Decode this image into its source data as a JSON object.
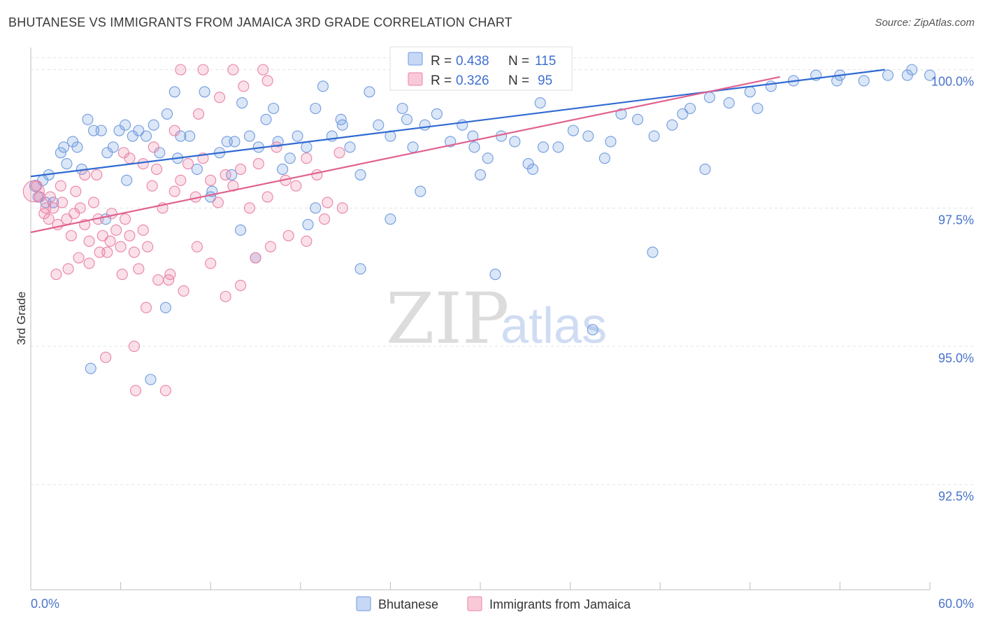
{
  "header": {
    "title": "BHUTANESE VS IMMIGRANTS FROM JAMAICA 3RD GRADE CORRELATION CHART",
    "source": "Source: ZipAtlas.com"
  },
  "watermark": {
    "zip": "ZIP",
    "atlas": "atlas"
  },
  "legend_stats": {
    "r_label": "R =",
    "n_label": "N =",
    "rows": [
      {
        "r": "0.438",
        "n": "115",
        "color": "#6f9be0"
      },
      {
        "r": "0.326",
        "n": "95",
        "color": "#ea82a6"
      }
    ]
  },
  "chart_data": {
    "type": "scatter",
    "title": "BHUTANESE VS IMMIGRANTS FROM JAMAICA 3RD GRADE CORRELATION CHART",
    "xlabel": "",
    "ylabel": "3rd Grade",
    "xlim": [
      0,
      60
    ],
    "ylim": [
      90.6,
      100.4
    ],
    "x_tick_labels": [
      "0.0%",
      "60.0%"
    ],
    "y_ticks": [
      100.0,
      97.5,
      95.0,
      92.5
    ],
    "y_tick_labels": [
      "100.0%",
      "97.5%",
      "95.0%",
      "92.5%"
    ],
    "grid": "horizontal dashed",
    "legend_position": "bottom-center",
    "series": [
      {
        "name": "Bhutanese",
        "color": "#6f9be0",
        "R": 0.438,
        "N": 115,
        "trend": {
          "x": [
            0,
            57
          ],
          "y": [
            98.07,
            100.0
          ]
        },
        "x": [
          0.3,
          0.5,
          0.8,
          1.2,
          1.5,
          2.0,
          2.4,
          2.8,
          3.1,
          3.4,
          3.8,
          4.2,
          4.7,
          5.1,
          5.5,
          5.9,
          6.3,
          6.8,
          7.2,
          7.7,
          8.2,
          8.6,
          9.1,
          9.6,
          10.0,
          10.6,
          11.1,
          11.6,
          12.1,
          12.6,
          13.1,
          13.6,
          14.1,
          14.6,
          15.2,
          15.7,
          16.2,
          16.8,
          17.3,
          17.8,
          18.4,
          19.0,
          19.5,
          20.1,
          20.7,
          21.3,
          22.0,
          22.6,
          23.2,
          24.0,
          24.8,
          25.5,
          26.3,
          27.1,
          28.0,
          28.8,
          29.6,
          30.5,
          31.4,
          32.3,
          33.2,
          34.2,
          35.2,
          36.2,
          37.2,
          38.3,
          39.4,
          40.5,
          41.6,
          42.8,
          44.0,
          45.3,
          46.6,
          48.0,
          49.4,
          50.9,
          52.4,
          54.0,
          55.6,
          57.2,
          58.8,
          60.0,
          2.2,
          6.4,
          9.8,
          13.4,
          16.5,
          20.8,
          25.1,
          29.5,
          34.0,
          38.7,
          43.5,
          48.5,
          53.8,
          58.5,
          1.0,
          5.0,
          9.0,
          12.0,
          15.0,
          18.5,
          22.0,
          26.0,
          30.0,
          33.5,
          37.5,
          41.5,
          45.0,
          4.0,
          8.0,
          14.0,
          19.0,
          24.0,
          31.0
        ],
        "y": [
          97.9,
          97.7,
          98.0,
          98.1,
          97.6,
          98.5,
          98.3,
          98.7,
          98.6,
          98.2,
          99.1,
          98.9,
          98.9,
          98.5,
          98.6,
          98.9,
          99.0,
          98.8,
          98.9,
          98.8,
          99.0,
          98.5,
          99.2,
          99.6,
          98.8,
          98.8,
          98.2,
          99.6,
          97.8,
          98.5,
          98.7,
          98.7,
          99.4,
          98.8,
          98.6,
          99.1,
          99.3,
          98.2,
          98.4,
          98.8,
          98.6,
          99.3,
          99.7,
          98.8,
          99.1,
          98.6,
          98.1,
          99.6,
          99.0,
          98.8,
          99.3,
          98.6,
          99.0,
          99.2,
          98.7,
          99.0,
          98.6,
          98.4,
          98.8,
          98.7,
          98.3,
          98.6,
          98.6,
          98.9,
          98.8,
          98.4,
          99.2,
          99.1,
          98.8,
          99.0,
          99.3,
          99.5,
          99.4,
          99.6,
          99.7,
          99.8,
          99.9,
          99.9,
          99.8,
          99.9,
          100.0,
          99.9,
          98.6,
          98.0,
          98.4,
          98.1,
          98.7,
          99.0,
          99.1,
          98.8,
          99.4,
          98.7,
          99.2,
          99.3,
          99.8,
          99.9,
          97.6,
          97.3,
          95.7,
          97.7,
          96.6,
          97.2,
          96.4,
          97.8,
          98.1,
          98.2,
          95.3,
          96.7,
          98.2,
          94.6,
          94.4,
          97.1,
          97.5,
          97.3,
          96.3
        ],
        "size": [
          16,
          15,
          15,
          15,
          15,
          15,
          15,
          15,
          15,
          15,
          15,
          15,
          15,
          15,
          15,
          15,
          15,
          15,
          15,
          15,
          15,
          15,
          15,
          15,
          15,
          15,
          15,
          15,
          15,
          15,
          15,
          15,
          15,
          15,
          15,
          15,
          15,
          15,
          15,
          15,
          15,
          15,
          15,
          15,
          15,
          15,
          15,
          15,
          15,
          15,
          15,
          15,
          15,
          15,
          15,
          15,
          15,
          15,
          15,
          15,
          15,
          15,
          15,
          15,
          15,
          15,
          15,
          15,
          15,
          15,
          15,
          15,
          15,
          15,
          15,
          15,
          15,
          15,
          15,
          15,
          15,
          15,
          15,
          15,
          15,
          15,
          15,
          15,
          15,
          15,
          15,
          15,
          15,
          15,
          15,
          15,
          15,
          15,
          15,
          15,
          15,
          15,
          15,
          15,
          15,
          15,
          15,
          15,
          15,
          15,
          15,
          15,
          15,
          15,
          15
        ]
      },
      {
        "name": "Immigrants from Jamaica",
        "color": "#ea82a6",
        "R": 0.326,
        "N": 95,
        "trend": {
          "x": [
            0,
            50
          ],
          "y": [
            97.06,
            99.87
          ]
        },
        "x": [
          0.2,
          0.4,
          0.6,
          0.9,
          1.2,
          1.5,
          1.8,
          2.1,
          2.4,
          2.7,
          3.0,
          3.3,
          3.6,
          3.9,
          4.2,
          4.5,
          4.8,
          5.1,
          5.4,
          5.7,
          6.0,
          6.3,
          6.6,
          6.9,
          7.2,
          7.5,
          7.8,
          8.1,
          8.4,
          8.8,
          9.2,
          9.6,
          10.0,
          10.5,
          11.0,
          11.5,
          12.0,
          12.5,
          13.0,
          13.5,
          14.0,
          14.6,
          15.2,
          15.8,
          16.4,
          17.0,
          17.7,
          18.4,
          19.1,
          19.8,
          20.6,
          1.0,
          1.7,
          2.5,
          3.2,
          3.9,
          4.6,
          5.3,
          6.1,
          6.9,
          7.7,
          8.5,
          9.3,
          10.2,
          11.1,
          12.0,
          13.0,
          14.0,
          15.0,
          16.0,
          17.2,
          18.4,
          19.6,
          20.8,
          2.0,
          4.4,
          6.6,
          8.2,
          9.6,
          11.2,
          12.6,
          14.2,
          15.8,
          1.3,
          2.9,
          5.0,
          7.0,
          9.0,
          3.6,
          6.2,
          7.5,
          10.0,
          11.5,
          13.5,
          15.5
        ],
        "y": [
          97.8,
          97.9,
          97.7,
          97.4,
          97.3,
          97.5,
          97.2,
          97.6,
          97.3,
          97.0,
          97.8,
          97.5,
          97.2,
          96.9,
          97.6,
          97.3,
          97.0,
          96.7,
          97.4,
          97.1,
          96.8,
          97.3,
          97.0,
          96.7,
          96.4,
          97.1,
          96.8,
          97.9,
          98.2,
          97.5,
          96.2,
          97.8,
          98.0,
          98.3,
          97.7,
          98.4,
          98.0,
          97.6,
          98.1,
          97.9,
          98.2,
          97.5,
          98.3,
          97.7,
          98.6,
          98.0,
          97.9,
          98.4,
          98.1,
          97.6,
          98.5,
          97.5,
          96.3,
          96.4,
          96.6,
          96.5,
          96.7,
          96.9,
          96.3,
          95.0,
          95.7,
          96.2,
          96.3,
          96.0,
          96.8,
          96.5,
          95.9,
          96.1,
          96.6,
          96.8,
          97.0,
          96.9,
          97.3,
          97.5,
          97.9,
          98.1,
          98.4,
          98.6,
          98.9,
          99.2,
          99.5,
          99.7,
          99.8,
          97.7,
          97.4,
          94.8,
          94.2,
          94.2,
          98.1,
          98.5,
          98.3,
          100.0,
          100.0,
          100.0,
          100.0
        ],
        "size": [
          30,
          15,
          15,
          15,
          15,
          15,
          15,
          15,
          15,
          15,
          15,
          15,
          15,
          15,
          15,
          15,
          15,
          15,
          15,
          15,
          15,
          15,
          15,
          15,
          15,
          15,
          15,
          15,
          15,
          15,
          15,
          15,
          15,
          15,
          15,
          15,
          15,
          15,
          15,
          15,
          15,
          15,
          15,
          15,
          15,
          15,
          15,
          15,
          15,
          15,
          15,
          15,
          15,
          15,
          15,
          15,
          15,
          15,
          15,
          15,
          15,
          15,
          15,
          15,
          15,
          15,
          15,
          15,
          15,
          15,
          15,
          15,
          15,
          15,
          15,
          15,
          15,
          15,
          15,
          15,
          15,
          15,
          15,
          15,
          15,
          15,
          15,
          15,
          15,
          15,
          15,
          15,
          15,
          15,
          15
        ]
      }
    ]
  }
}
